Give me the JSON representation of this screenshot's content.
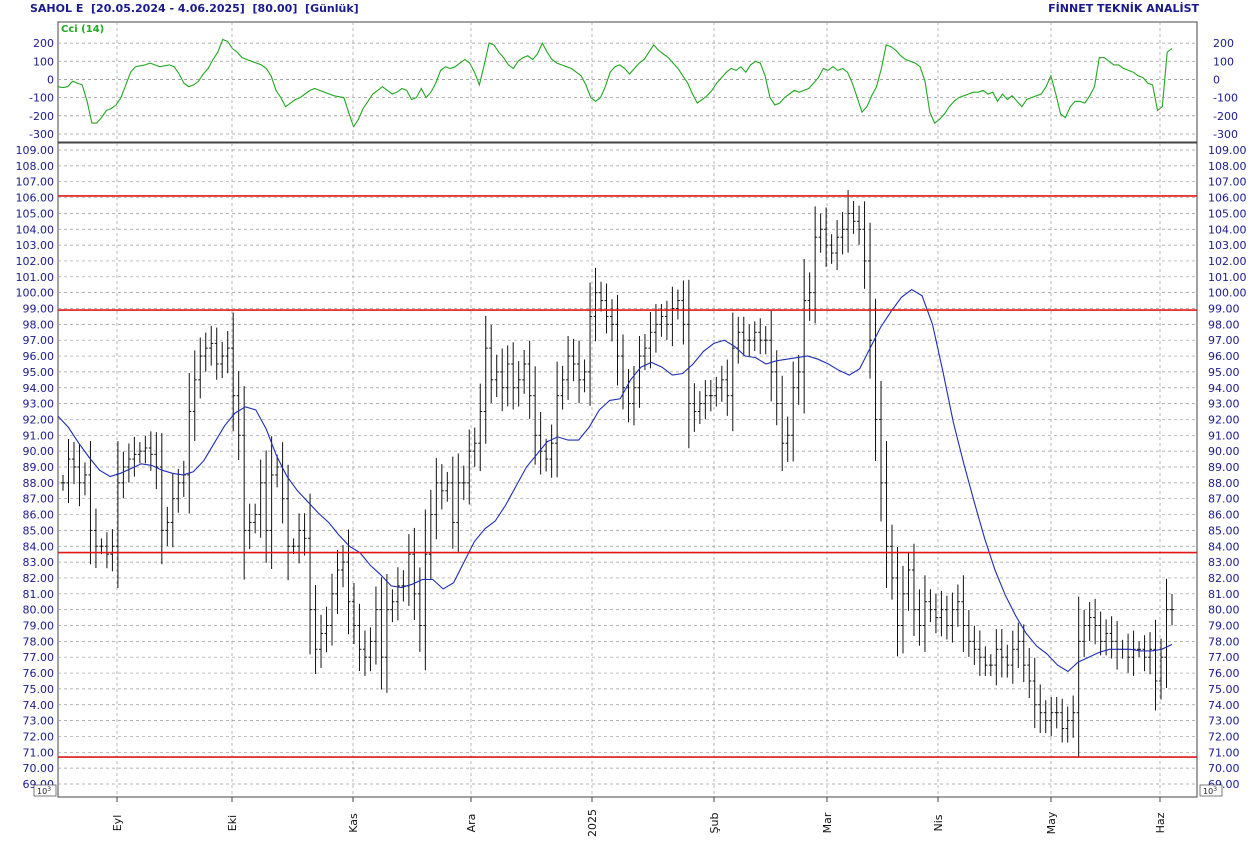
{
  "header": {
    "symbol": "SAHOL E",
    "range": "[20.05.2024 - 4.06.2025]",
    "param": "[80.00]",
    "interval": "[Günlük]",
    "brand": "FİNNET TEKNİK ANALİST"
  },
  "colors": {
    "candle": "#111111",
    "ma_line": "#1f2db5",
    "cci_line": "#21a821",
    "level_line": "#e01818",
    "axis_text": "#1a1a8c",
    "grid": "#9a9a9a"
  },
  "chart_data": [
    {
      "type": "line",
      "title": "Cci (14)",
      "ylim": [
        -300,
        250
      ],
      "yticks": [
        "200",
        "100",
        "0",
        "-100",
        "-200",
        "-300"
      ],
      "grid": true,
      "series": [
        {
          "values": [
            -40,
            -45,
            -40,
            -10,
            -20,
            -30,
            -120,
            -240,
            -240,
            -210,
            -170,
            -160,
            -140,
            -100,
            -30,
            40,
            70,
            75,
            80,
            90,
            80,
            70,
            75,
            80,
            70,
            30,
            -20,
            -40,
            -30,
            -10,
            30,
            60,
            110,
            150,
            220,
            210,
            170,
            150,
            120,
            110,
            100,
            90,
            80,
            60,
            20,
            -60,
            -100,
            -150,
            -130,
            -110,
            -100,
            -80,
            -60,
            -50,
            -60,
            -70,
            -80,
            -90,
            -95,
            -100,
            -180,
            -260,
            -220,
            -160,
            -120,
            -80,
            -60,
            -40,
            -60,
            -80,
            -70,
            -50,
            -60,
            -110,
            -100,
            -50,
            -100,
            -70,
            -20,
            50,
            70,
            60,
            70,
            90,
            110,
            90,
            40,
            -30,
            80,
            200,
            190,
            150,
            120,
            80,
            60,
            100,
            120,
            130,
            110,
            140,
            200,
            150,
            110,
            90,
            80,
            70,
            60,
            40,
            20,
            -30,
            -100,
            -120,
            -100,
            -40,
            40,
            70,
            80,
            60,
            30,
            60,
            90,
            110,
            150,
            190,
            160,
            140,
            120,
            90,
            60,
            20,
            -20,
            -80,
            -130,
            -110,
            -90,
            -60,
            -20,
            10,
            40,
            60,
            50,
            70,
            40,
            80,
            100,
            90,
            20,
            -100,
            -140,
            -130,
            -100,
            -80,
            -60,
            -70,
            -60,
            -50,
            -20,
            10,
            60,
            50,
            70,
            50,
            60,
            40,
            -20,
            -100,
            -180,
            -150,
            -90,
            -40,
            60,
            190,
            180,
            160,
            130,
            110,
            100,
            90,
            70,
            -10,
            -180,
            -240,
            -220,
            -190,
            -150,
            -120,
            -100,
            -90,
            -80,
            -70,
            -70,
            -60,
            -80,
            -70,
            -120,
            -80,
            -110,
            -90,
            -120,
            -150,
            -110,
            -100,
            -90,
            -80,
            -40,
            20,
            -80,
            -190,
            -210,
            -150,
            -120,
            -120,
            -130,
            -90,
            -40,
            120,
            120,
            100,
            80,
            80,
            60,
            50,
            40,
            20,
            10,
            -20,
            -30,
            -170,
            -150,
            150,
            170
          ]
        }
      ]
    },
    {
      "type": "bar",
      "subtype": "ohlc",
      "xlabels": [
        "Eyl",
        "Eki",
        "Kas",
        "Ara",
        "2025",
        "Şub",
        "Mar",
        "Nis",
        "May",
        "Haz"
      ],
      "ylim": [
        69,
        109.5
      ],
      "yticks": [
        "69.00",
        "70.00",
        "71.00",
        "72.00",
        "73.00",
        "74.00",
        "75.00",
        "76.00",
        "77.00",
        "78.00",
        "79.00",
        "80.00",
        "81.00",
        "82.00",
        "83.00",
        "84.00",
        "85.00",
        "86.00",
        "87.00",
        "88.00",
        "89.00",
        "90.00",
        "91.00",
        "92.00",
        "93.00",
        "94.00",
        "95.00",
        "96.00",
        "97.00",
        "98.00",
        "99.00",
        "100.00",
        "101.00",
        "102.00",
        "103.00",
        "104.00",
        "105.00",
        "106.00",
        "107.00",
        "108.00",
        "109.00"
      ],
      "scale_label": "10^3",
      "horizontal_levels": [
        106.1,
        98.9,
        83.6,
        70.7
      ],
      "grid": true,
      "series": [
        {
          "values": [
            88,
            89.5,
            89,
            88,
            88.5,
            85,
            84,
            84,
            83.5,
            84,
            88,
            89,
            89.5,
            89.8,
            90,
            90.2,
            89.8,
            89,
            85,
            85.5,
            87,
            88,
            88.5,
            92.5,
            94.5,
            96,
            96.5,
            96.8,
            95.5,
            96,
            96.5,
            93.5,
            91,
            85,
            85.5,
            86,
            88,
            85,
            88.5,
            89,
            87,
            84,
            84,
            85,
            84.5,
            80,
            77.5,
            78.5,
            79,
            81,
            82.5,
            83,
            80.5,
            79,
            77.5,
            77,
            78,
            80,
            77,
            80,
            80.5,
            81.5,
            81.5,
            83.5,
            81,
            79,
            83.5,
            86,
            88,
            87.5,
            88,
            85.5,
            88,
            88,
            90,
            90.5,
            92.5,
            96.5,
            94.5,
            95,
            94,
            95.5,
            94,
            94.5,
            95.5,
            93.5,
            91,
            90,
            89.5,
            90.5,
            93.5,
            94.5,
            96,
            95.5,
            94.5,
            95,
            98.5,
            100,
            99.5,
            98.5,
            98,
            96,
            94,
            93,
            94,
            96,
            96.5,
            97.5,
            98,
            98.5,
            98,
            99,
            99.5,
            98,
            93,
            92.5,
            93,
            93.5,
            93.5,
            94,
            94.5,
            93.5,
            96.5,
            97.5,
            97,
            97,
            97.5,
            97,
            97,
            95,
            93,
            90.5,
            91,
            94,
            95,
            99.5,
            100,
            103.5,
            104,
            103,
            102.5,
            103.5,
            104,
            105,
            104.5,
            104,
            102,
            97,
            92,
            88,
            84,
            82,
            79,
            81,
            82.5,
            80,
            79,
            80.5,
            80,
            79.5,
            80,
            79,
            80,
            80.5,
            79,
            78,
            77.5,
            77,
            76.5,
            76.5,
            77.5,
            77,
            76.5,
            77.5,
            78,
            76.5,
            75.5,
            74,
            73.5,
            73,
            73.5,
            73.5,
            72.5,
            73,
            73.5,
            78,
            79,
            79.5,
            79,
            78,
            78.5,
            78,
            77.5,
            77.5,
            77,
            77.5,
            77.5,
            77,
            77.5,
            75.5,
            77,
            80,
            80
          ]
        },
        {
          "values": [
            92.2,
            91.5,
            90.5,
            89.6,
            88.8,
            88.4,
            88.6,
            88.9,
            89.2,
            89.1,
            88.8,
            88.6,
            88.5,
            88.7,
            89.4,
            90.5,
            91.6,
            92.4,
            92.8,
            92.6,
            91.4,
            89.7,
            88.4,
            87.5,
            86.8,
            86.1,
            85.5,
            84.7,
            84,
            83.6,
            82.8,
            82.2,
            81.5,
            81.4,
            81.6,
            81.9,
            81.9,
            81.3,
            81.7,
            83,
            84.3,
            85.1,
            85.6,
            86.6,
            87.8,
            89,
            89.8,
            90.6,
            90.9,
            90.7,
            90.7,
            91.5,
            92.6,
            93.2,
            93.3,
            94.5,
            95.3,
            95.6,
            95.3,
            94.8,
            94.9,
            95.5,
            96.3,
            96.8,
            97,
            96.6,
            96,
            95.9,
            95.5,
            95.7,
            95.8,
            95.9,
            96,
            95.8,
            95.5,
            95.1,
            94.8,
            95.2,
            96.5,
            97.8,
            98.8,
            99.7,
            100.2,
            99.8,
            98,
            95,
            91.8,
            89.2,
            86.8,
            84.5,
            82.5,
            80.9,
            79.6,
            78.5,
            77.7,
            77.2,
            76.5,
            76.1,
            76.7,
            77,
            77.3,
            77.5,
            77.5,
            77.5,
            77.4,
            77.4,
            77.5,
            77.8
          ]
        }
      ]
    }
  ]
}
